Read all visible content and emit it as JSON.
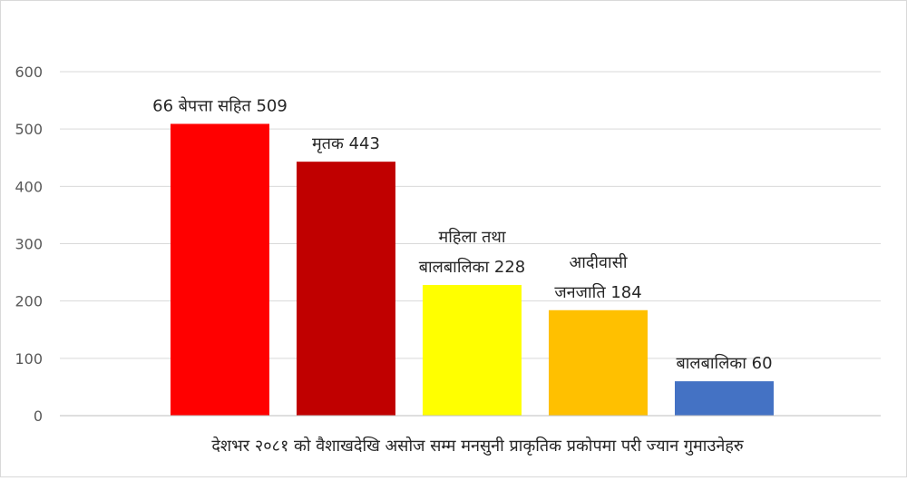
{
  "chart_data": {
    "type": "bar",
    "xlabel": "देशभर २०८१ को वैशाखदेखि असोज सम्म मनसुनी प्राकृतिक प्रकोपमा परी ज्यान गुमाउनेहरु",
    "ylabel": "",
    "ylim": [
      0,
      600
    ],
    "yticks": [
      0,
      100,
      200,
      300,
      400,
      500,
      600
    ],
    "grid": true,
    "categories": [
      "66 बेपत्ता सहित",
      "मृतक",
      "महिला तथा बालबालिका",
      "आदीवासी जनजाति",
      "बालबालिका"
    ],
    "values": [
      509,
      443,
      228,
      184,
      60
    ],
    "bar_colors": [
      "#ff0000",
      "#c00000",
      "#ffff00",
      "#ffc000",
      "#4472c4"
    ],
    "data_labels": [
      [
        "66 बेपत्ता सहित 509"
      ],
      [
        "मृतक 443"
      ],
      [
        "महिला तथा",
        "बालबालिका 228"
      ],
      [
        "आदीवासी",
        "जनजाति 184"
      ],
      [
        "बालबालिका 60"
      ]
    ]
  }
}
